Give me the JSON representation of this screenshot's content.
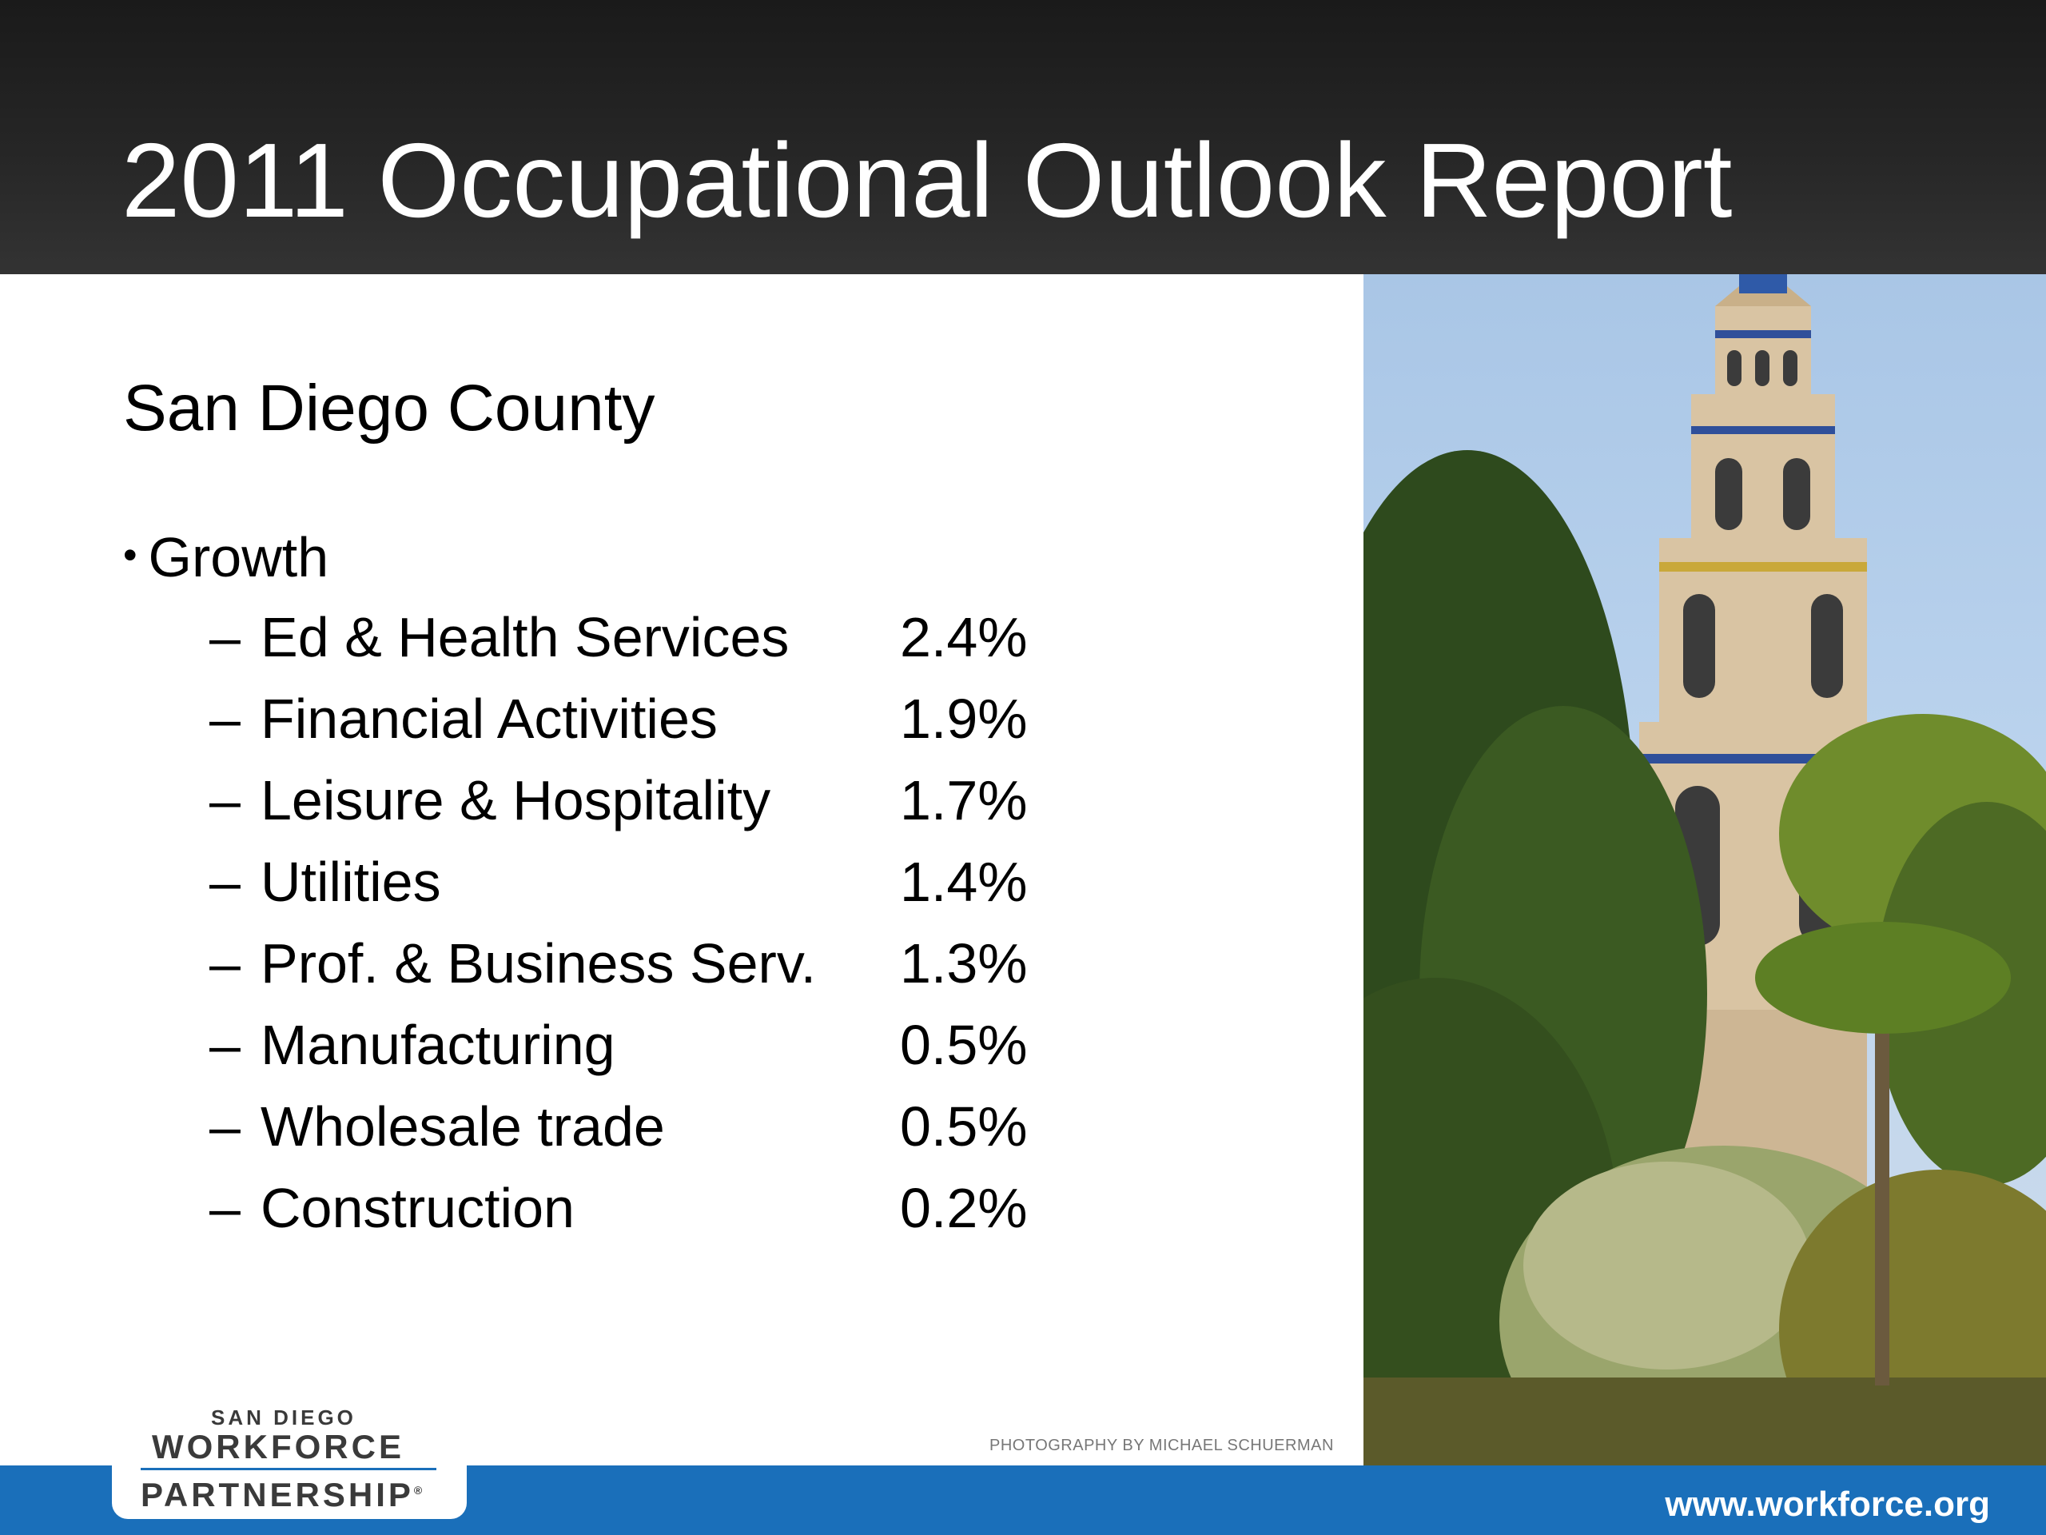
{
  "slide": {
    "title": "2011 Occupational Outlook Report",
    "subtitle": "San Diego County",
    "bullet_glyph": "•",
    "bullet_label": "Growth",
    "dash": "–",
    "rows": [
      {
        "label": "Ed & Health Services",
        "value": "2.4%"
      },
      {
        "label": "Financial Activities",
        "value": "1.9%"
      },
      {
        "label": "Leisure & Hospitality",
        "value": "1.7%"
      },
      {
        "label": "Utilities",
        "value": "1.4%"
      },
      {
        "label": "Prof. & Business Serv.",
        "value": "1.3%"
      },
      {
        "label": "Manufacturing",
        "value": "0.5%"
      },
      {
        "label": "Wholesale trade",
        "value": "0.5%"
      },
      {
        "label": "Construction",
        "value": "0.2%"
      }
    ]
  },
  "photo": {
    "credit": "PHOTOGRAPHY BY MICHAEL SCHUERMAN"
  },
  "logo": {
    "line1": "SAN DIEGO",
    "line2": "WORKFORCE",
    "line3": "PARTNERSHIP",
    "trademark": "®"
  },
  "footer": {
    "website": "www.workforce.org"
  },
  "colors": {
    "header_bg": "#262626",
    "footer_bg": "#1a6fba",
    "text": "#000000"
  }
}
